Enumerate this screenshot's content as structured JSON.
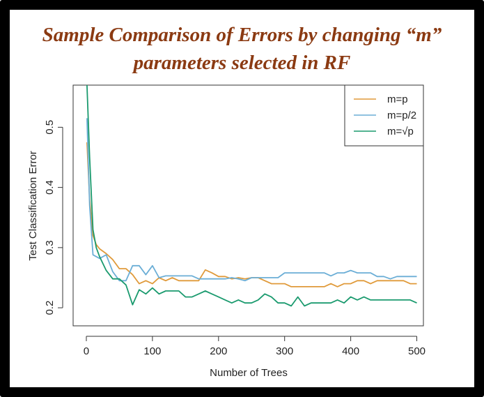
{
  "chart_data": {
    "type": "line",
    "title_line1": "Sample Comparison of Errors by changing “m”",
    "title_line2": "parameters selected in RF",
    "xlabel": "Number of Trees",
    "ylabel": "Test Classification Error",
    "xlim": [
      -20,
      510
    ],
    "ylim": [
      0.17,
      0.57
    ],
    "xticks": [
      0,
      100,
      200,
      300,
      400,
      500
    ],
    "xtick_labels": [
      "0",
      "100",
      "200",
      "300",
      "400",
      "500"
    ],
    "yticks": [
      0.2,
      0.3,
      0.4,
      0.5
    ],
    "ytick_labels": [
      "0.2",
      "0.3",
      "0.4",
      "0.5"
    ],
    "grid": false,
    "legend_position": "top-right",
    "series": [
      {
        "name": "m=p",
        "color": "#E09A3A",
        "x": [
          1,
          5,
          10,
          15,
          20,
          30,
          40,
          50,
          60,
          70,
          80,
          90,
          100,
          110,
          120,
          130,
          140,
          150,
          160,
          170,
          180,
          190,
          200,
          210,
          220,
          230,
          240,
          250,
          260,
          270,
          280,
          290,
          300,
          310,
          320,
          330,
          340,
          350,
          360,
          370,
          380,
          390,
          400,
          410,
          420,
          430,
          440,
          450,
          460,
          470,
          480,
          490,
          500
        ],
        "values": [
          0.475,
          0.38,
          0.32,
          0.305,
          0.298,
          0.29,
          0.28,
          0.265,
          0.265,
          0.255,
          0.24,
          0.245,
          0.24,
          0.25,
          0.245,
          0.25,
          0.245,
          0.245,
          0.245,
          0.245,
          0.263,
          0.258,
          0.252,
          0.252,
          0.248,
          0.25,
          0.248,
          0.25,
          0.25,
          0.245,
          0.24,
          0.24,
          0.24,
          0.235,
          0.235,
          0.235,
          0.235,
          0.235,
          0.235,
          0.24,
          0.235,
          0.24,
          0.24,
          0.245,
          0.245,
          0.24,
          0.245,
          0.245,
          0.245,
          0.245,
          0.245,
          0.24,
          0.24
        ]
      },
      {
        "name": "m=p/2",
        "color": "#6BAED6",
        "x": [
          1,
          5,
          10,
          15,
          20,
          30,
          40,
          50,
          60,
          70,
          80,
          90,
          100,
          110,
          120,
          130,
          140,
          150,
          160,
          170,
          180,
          190,
          200,
          210,
          220,
          230,
          240,
          250,
          260,
          270,
          280,
          290,
          300,
          310,
          320,
          330,
          340,
          350,
          360,
          370,
          380,
          390,
          400,
          410,
          420,
          430,
          440,
          450,
          460,
          470,
          480,
          490,
          500
        ],
        "values": [
          0.515,
          0.37,
          0.288,
          0.285,
          0.282,
          0.288,
          0.26,
          0.245,
          0.245,
          0.27,
          0.27,
          0.255,
          0.27,
          0.25,
          0.253,
          0.253,
          0.253,
          0.253,
          0.253,
          0.248,
          0.248,
          0.248,
          0.248,
          0.248,
          0.25,
          0.248,
          0.245,
          0.25,
          0.25,
          0.25,
          0.25,
          0.25,
          0.258,
          0.258,
          0.258,
          0.258,
          0.258,
          0.258,
          0.258,
          0.253,
          0.258,
          0.258,
          0.262,
          0.258,
          0.258,
          0.258,
          0.252,
          0.252,
          0.248,
          0.252,
          0.252,
          0.252,
          0.252
        ]
      },
      {
        "name": "m=√p",
        "color": "#1A9A6E",
        "x": [
          1,
          5,
          10,
          15,
          20,
          30,
          40,
          50,
          60,
          70,
          80,
          90,
          100,
          110,
          120,
          130,
          140,
          150,
          160,
          170,
          180,
          190,
          200,
          210,
          220,
          230,
          240,
          250,
          260,
          270,
          280,
          290,
          300,
          310,
          320,
          330,
          340,
          350,
          360,
          370,
          380,
          390,
          400,
          410,
          420,
          430,
          440,
          450,
          460,
          470,
          480,
          490,
          500
        ],
        "values": [
          0.57,
          0.45,
          0.33,
          0.3,
          0.285,
          0.262,
          0.248,
          0.248,
          0.238,
          0.205,
          0.23,
          0.223,
          0.233,
          0.223,
          0.228,
          0.228,
          0.228,
          0.218,
          0.218,
          0.223,
          0.228,
          0.223,
          0.218,
          0.213,
          0.208,
          0.213,
          0.208,
          0.208,
          0.213,
          0.223,
          0.218,
          0.208,
          0.208,
          0.203,
          0.218,
          0.203,
          0.208,
          0.208,
          0.208,
          0.208,
          0.213,
          0.208,
          0.218,
          0.213,
          0.218,
          0.213,
          0.213,
          0.213,
          0.213,
          0.213,
          0.213,
          0.213,
          0.208
        ]
      }
    ]
  }
}
